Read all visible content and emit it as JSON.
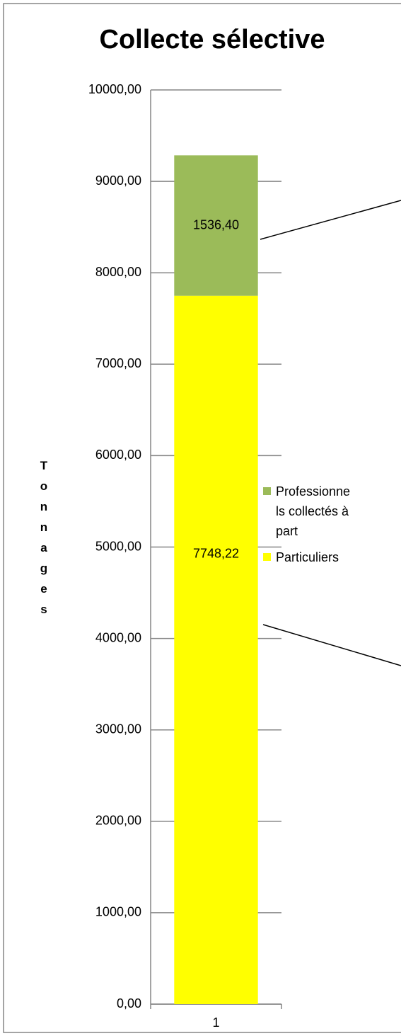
{
  "chart_data": {
    "type": "stacked_bar",
    "title": "Collecte sélective",
    "y_label": "Tonnages",
    "categories": [
      "1"
    ],
    "series": [
      {
        "name": "Particuliers",
        "color": "#ffff00",
        "values": [
          7748.22
        ],
        "value_labels": [
          "7748,22"
        ]
      },
      {
        "name": "Professionnels collectés à part",
        "color": "#9bbb59",
        "values": [
          1536.4
        ],
        "value_labels": [
          "1536,40"
        ]
      }
    ],
    "ylim": [
      0,
      10000
    ],
    "yticks": [
      {
        "value": 0,
        "label": "0,00"
      },
      {
        "value": 1000,
        "label": "1000,00"
      },
      {
        "value": 2000,
        "label": "2000,00"
      },
      {
        "value": 3000,
        "label": "3000,00"
      },
      {
        "value": 4000,
        "label": "4000,00"
      },
      {
        "value": 5000,
        "label": "5000,00"
      },
      {
        "value": 6000,
        "label": "6000,00"
      },
      {
        "value": 7000,
        "label": "7000,00"
      },
      {
        "value": 8000,
        "label": "8000,00"
      },
      {
        "value": 9000,
        "label": "9000,00"
      },
      {
        "value": 10000,
        "label": "10000,00"
      }
    ],
    "grid": true,
    "legend": "right"
  }
}
